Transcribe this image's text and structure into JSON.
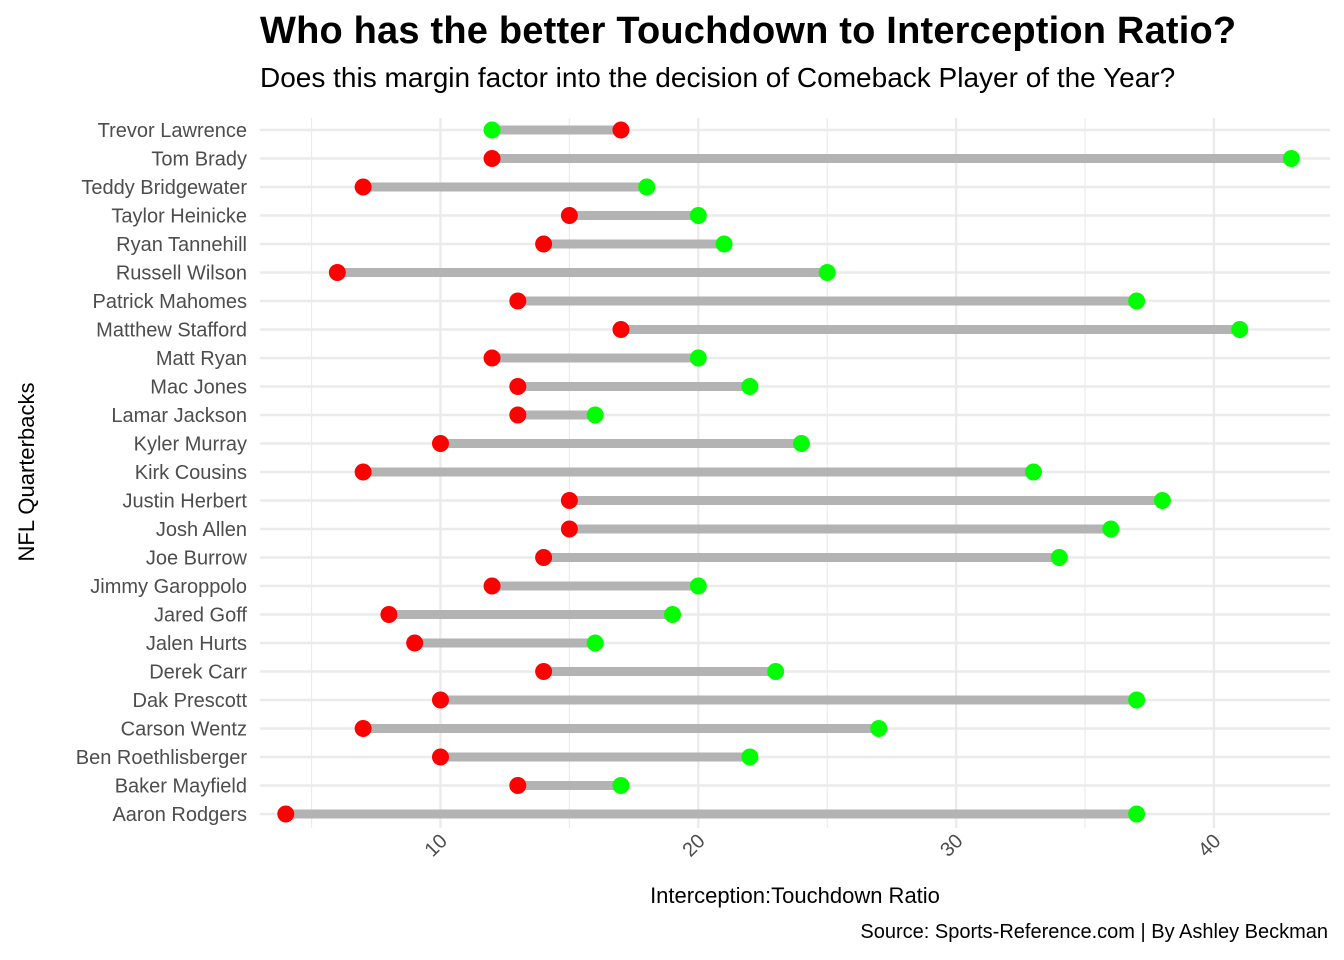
{
  "title": "Who has the better Touchdown to Interception Ratio?",
  "subtitle": "Does this margin factor into the decision of Comeback Player of the Year?",
  "caption": "Source: Sports-Reference.com | By Ashley Beckman",
  "colors": {
    "interception_point": "#ff0000",
    "touchdown_point": "#00ff00",
    "segment": "#b3b3b3",
    "grid": "#ebebeb"
  },
  "chart_data": {
    "type": "dumbbell",
    "xlabel": "Interception:Touchdown Ratio",
    "ylabel": "NFL Quarterbacks",
    "xlim": [
      3,
      44.5
    ],
    "xticks": [
      10,
      20,
      30,
      40
    ],
    "grid": true,
    "categories": [
      "Trevor Lawrence",
      "Tom Brady",
      "Teddy Bridgewater",
      "Taylor Heinicke",
      "Ryan Tannehill",
      "Russell Wilson",
      "Patrick Mahomes",
      "Matthew Stafford",
      "Matt Ryan",
      "Mac Jones",
      "Lamar Jackson",
      "Kyler Murray",
      "Kirk Cousins",
      "Justin Herbert",
      "Josh Allen",
      "Joe Burrow",
      "Jimmy Garoppolo",
      "Jared Goff",
      "Jalen Hurts",
      "Derek Carr",
      "Dak Prescott",
      "Carson Wentz",
      "Ben Roethlisberger",
      "Baker Mayfield",
      "Aaron Rodgers"
    ],
    "series": [
      {
        "color": "#ff0000",
        "values": [
          17,
          12,
          7,
          15,
          14,
          6,
          13,
          17,
          12,
          13,
          13,
          10,
          7,
          15,
          15,
          14,
          12,
          8,
          9,
          14,
          10,
          7,
          10,
          13,
          4
        ]
      },
      {
        "color": "#00ff00",
        "values": [
          12,
          43,
          18,
          20,
          21,
          25,
          37,
          41,
          20,
          22,
          16,
          24,
          33,
          38,
          36,
          34,
          20,
          19,
          16,
          23,
          37,
          27,
          22,
          17,
          37
        ]
      }
    ]
  }
}
